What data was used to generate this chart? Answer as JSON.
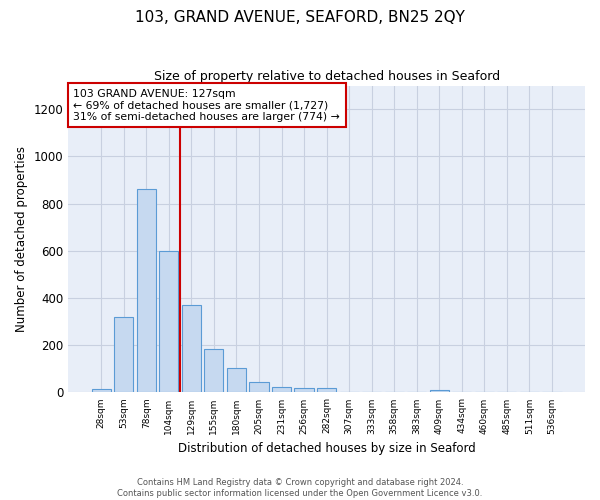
{
  "title": "103, GRAND AVENUE, SEAFORD, BN25 2QY",
  "subtitle": "Size of property relative to detached houses in Seaford",
  "xlabel": "Distribution of detached houses by size in Seaford",
  "ylabel": "Number of detached properties",
  "bar_labels": [
    "28sqm",
    "53sqm",
    "78sqm",
    "104sqm",
    "129sqm",
    "155sqm",
    "180sqm",
    "205sqm",
    "231sqm",
    "256sqm",
    "282sqm",
    "307sqm",
    "333sqm",
    "358sqm",
    "383sqm",
    "409sqm",
    "434sqm",
    "460sqm",
    "485sqm",
    "511sqm",
    "536sqm"
  ],
  "bar_values": [
    15,
    320,
    860,
    600,
    370,
    185,
    105,
    45,
    22,
    18,
    18,
    0,
    0,
    0,
    0,
    10,
    0,
    0,
    0,
    0,
    0
  ],
  "bar_color": "#c6d9f0",
  "bar_edge_color": "#5b9bd5",
  "vline_x": 3.5,
  "vline_color": "#cc0000",
  "annotation_text": "103 GRAND AVENUE: 127sqm\n← 69% of detached houses are smaller (1,727)\n31% of semi-detached houses are larger (774) →",
  "annotation_box_color": "#ffffff",
  "annotation_box_edge": "#cc0000",
  "ylim": [
    0,
    1300
  ],
  "yticks": [
    0,
    200,
    400,
    600,
    800,
    1000,
    1200
  ],
  "grid_color": "#c8d0e0",
  "bg_color": "#e8eef8",
  "footer": "Contains HM Land Registry data © Crown copyright and database right 2024.\nContains public sector information licensed under the Open Government Licence v3.0."
}
